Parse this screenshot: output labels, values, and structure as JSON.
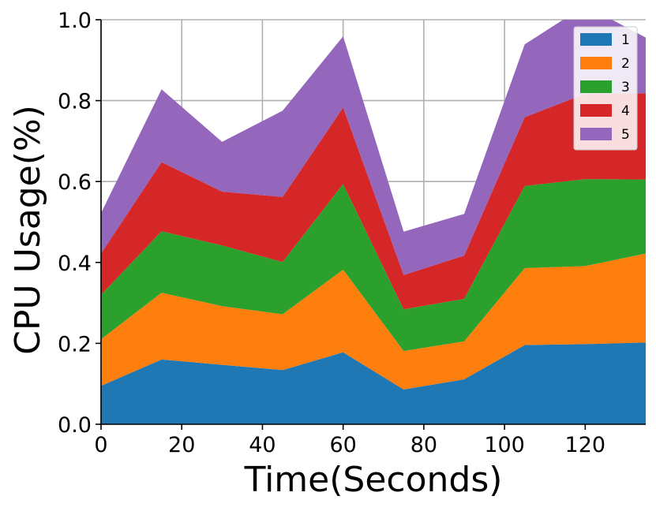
{
  "chart_data": {
    "type": "area",
    "stacked": true,
    "title": "",
    "xlabel": "Time(Seconds)",
    "ylabel": "CPU Usage(%)",
    "xlim": [
      0,
      135
    ],
    "ylim": [
      0,
      1.0
    ],
    "xticks": [
      0,
      20,
      40,
      60,
      80,
      100,
      120
    ],
    "xtick_labels": [
      "0",
      "20",
      "40",
      "60",
      "80",
      "100",
      "120"
    ],
    "yticks": [
      0.0,
      0.2,
      0.4,
      0.6,
      0.8,
      1.0
    ],
    "ytick_labels": [
      "0.0",
      "0.2",
      "0.4",
      "0.6",
      "0.8",
      "1.0"
    ],
    "grid": true,
    "legend_position": "top-right",
    "x": [
      0,
      15,
      30,
      45,
      60,
      75,
      90,
      105,
      120,
      135
    ],
    "series": [
      {
        "name": "1",
        "color": "#1f77b4",
        "values": [
          0.095,
          0.16,
          0.147,
          0.134,
          0.178,
          0.086,
          0.111,
          0.196,
          0.198,
          0.202
        ]
      },
      {
        "name": "2",
        "color": "#ff7f0e",
        "values": [
          0.115,
          0.165,
          0.145,
          0.138,
          0.204,
          0.095,
          0.094,
          0.19,
          0.193,
          0.22
        ]
      },
      {
        "name": "3",
        "color": "#2ca02c",
        "values": [
          0.11,
          0.152,
          0.15,
          0.129,
          0.212,
          0.103,
          0.105,
          0.203,
          0.215,
          0.183
        ]
      },
      {
        "name": "4",
        "color": "#d62728",
        "values": [
          0.102,
          0.171,
          0.133,
          0.161,
          0.189,
          0.085,
          0.107,
          0.17,
          0.211,
          0.213
        ]
      },
      {
        "name": "5",
        "color": "#9467bd",
        "values": [
          0.1,
          0.18,
          0.123,
          0.213,
          0.176,
          0.107,
          0.103,
          0.18,
          0.218,
          0.138
        ]
      }
    ]
  }
}
